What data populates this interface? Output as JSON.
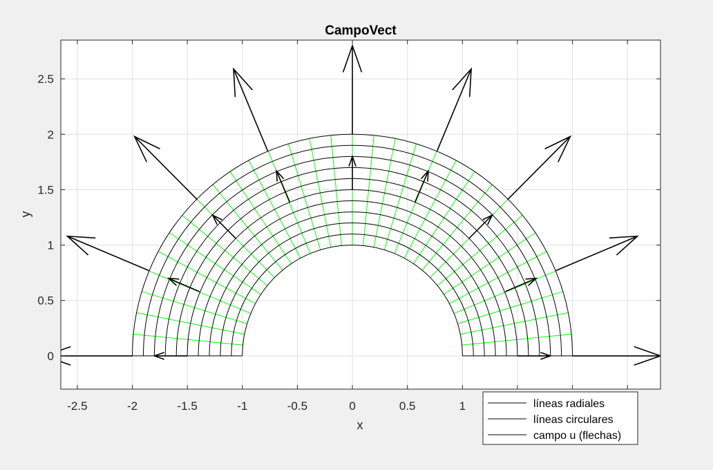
{
  "chart_data": {
    "type": "line",
    "title": "CampoVect",
    "xlabel": "x",
    "ylabel": "y",
    "xlim": [
      -2.65,
      2.8
    ],
    "ylim": [
      -0.3,
      2.85
    ],
    "xticks": [
      -2.5,
      -2,
      -1.5,
      -1,
      -0.5,
      0,
      0.5,
      1,
      1.5,
      2,
      2.5
    ],
    "yticks": [
      0,
      0.5,
      1,
      1.5,
      2,
      2.5
    ],
    "xtick_labels": [
      "-2.5",
      "-2",
      "-1.5",
      "-1",
      "-0.5",
      "0",
      "0.5",
      "1",
      "1.5",
      "2",
      "2.5"
    ],
    "ytick_labels": [
      "0",
      "0.5",
      "1",
      "1.5",
      "2",
      "2.5"
    ],
    "grid": true,
    "legend_position": "bottom-right",
    "series": [
      {
        "name": "líneas radiales",
        "kind": "radial",
        "color": "#00ff00",
        "r_range": [
          1,
          2
        ],
        "angles_deg": [
          0,
          5.625,
          11.25,
          16.875,
          22.5,
          28.125,
          33.75,
          39.375,
          45,
          50.625,
          56.25,
          61.875,
          67.5,
          73.125,
          78.75,
          84.375,
          90,
          95.625,
          101.25,
          106.875,
          112.5,
          118.125,
          123.75,
          129.375,
          135,
          140.625,
          146.25,
          151.875,
          157.5,
          163.125,
          168.75,
          174.375,
          180
        ]
      },
      {
        "name": "líneas circulares",
        "kind": "circular",
        "color": "#000000",
        "radii": [
          1,
          1.1,
          1.2,
          1.3,
          1.4,
          1.5,
          1.6,
          1.7,
          1.8,
          1.9,
          2
        ],
        "theta_range_deg": [
          0,
          180
        ]
      },
      {
        "name": "campo u (flechas)",
        "kind": "quiver",
        "color": "#000000",
        "arrows": [
          {
            "x": 1.5,
            "y": 0,
            "u": 0.3,
            "v": 0
          },
          {
            "x": 2,
            "y": 0,
            "u": 0.8,
            "v": 0
          },
          {
            "x": 1.39,
            "y": 0.58,
            "u": 0.28,
            "v": 0.12
          },
          {
            "x": 1.85,
            "y": 0.77,
            "u": 0.74,
            "v": 0.31
          },
          {
            "x": 1.06,
            "y": 1.06,
            "u": 0.21,
            "v": 0.21
          },
          {
            "x": 1.41,
            "y": 1.41,
            "u": 0.57,
            "v": 0.57
          },
          {
            "x": 0.57,
            "y": 1.39,
            "u": 0.12,
            "v": 0.28
          },
          {
            "x": 0.77,
            "y": 1.85,
            "u": 0.31,
            "v": 0.74
          },
          {
            "x": 0,
            "y": 1.5,
            "u": 0,
            "v": 0.3
          },
          {
            "x": 0,
            "y": 2,
            "u": 0,
            "v": 0.8
          },
          {
            "x": -0.57,
            "y": 1.39,
            "u": -0.12,
            "v": 0.28
          },
          {
            "x": -0.77,
            "y": 1.85,
            "u": -0.31,
            "v": 0.74
          },
          {
            "x": -1.06,
            "y": 1.06,
            "u": -0.21,
            "v": 0.21
          },
          {
            "x": -1.41,
            "y": 1.41,
            "u": -0.57,
            "v": 0.57
          },
          {
            "x": -1.39,
            "y": 0.58,
            "u": -0.28,
            "v": 0.12
          },
          {
            "x": -1.85,
            "y": 0.77,
            "u": -0.74,
            "v": 0.31
          },
          {
            "x": -1.5,
            "y": 0,
            "u": -0.3,
            "v": 0
          },
          {
            "x": -2,
            "y": 0,
            "u": -0.8,
            "v": 0
          }
        ]
      }
    ]
  }
}
